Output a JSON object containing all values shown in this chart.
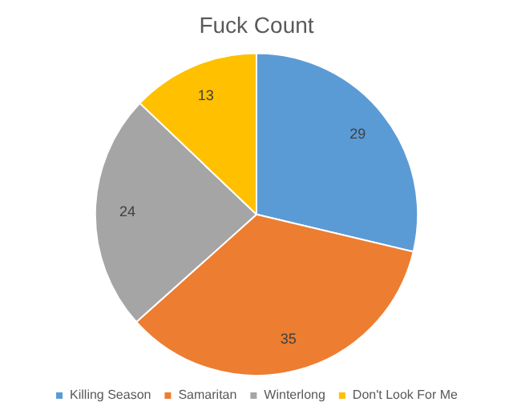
{
  "chart_data": {
    "type": "pie",
    "title": "Fuck Count",
    "categories": [
      "Killing Season",
      "Samaritan",
      "Winterlong",
      "Don't Look For Me"
    ],
    "values": [
      29,
      35,
      24,
      13
    ],
    "colors": [
      "#5b9bd5",
      "#ed7d31",
      "#a5a5a5",
      "#ffc000"
    ],
    "data_labels": true,
    "legend": "bottom"
  }
}
